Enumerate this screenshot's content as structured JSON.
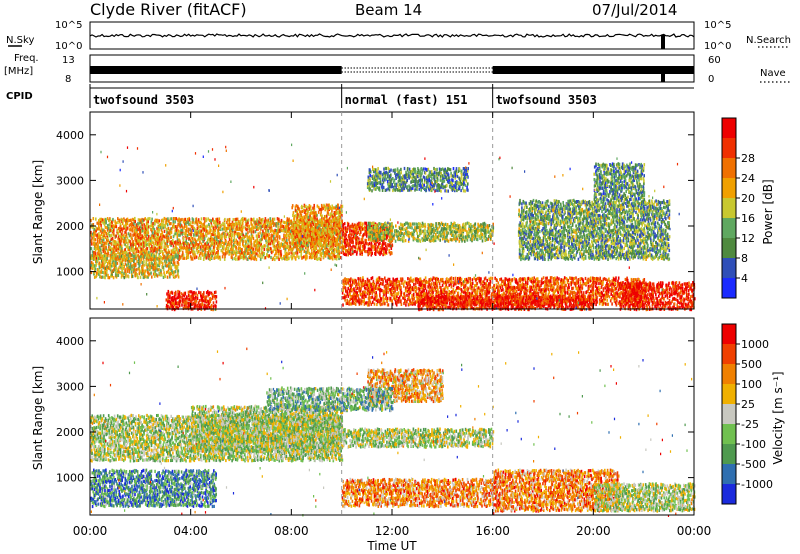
{
  "header": {
    "station": "Clyde River (fitACF)",
    "beam": "Beam 14",
    "date": "07/Jul/2014"
  },
  "aux_panels": {
    "nsky_label": "N.Sky",
    "nsky_ticks": [
      "10^5",
      "10^0"
    ],
    "nsearch_label": "N.Search",
    "nsearch_ticks": [
      "10^5",
      "10^0"
    ],
    "freq_label": "Freq.",
    "freq_unit": "[MHz]",
    "freq_ticks": [
      "13",
      "8"
    ],
    "nave_label": "Nave",
    "nave_ticks": [
      "60",
      "0"
    ],
    "cpid_label": "CPID",
    "cpid_segments": [
      {
        "label": "twofsound 3503",
        "start_hour": 0
      },
      {
        "label": "normal (fast) 151",
        "start_hour": 10
      },
      {
        "label": "twofsound 3503",
        "start_hour": 16
      }
    ]
  },
  "chart_data": [
    {
      "type": "heatmap",
      "title": "",
      "xlabel": "Time UT",
      "ylabel": "Slant Range [km]",
      "xlim": [
        0,
        24
      ],
      "ylim": [
        180,
        4500
      ],
      "yticks": [
        1000,
        2000,
        3000,
        4000
      ],
      "colorbar": {
        "label": "Power [dB]",
        "ticks": [
          "4",
          "8",
          "12",
          "16",
          "20",
          "24",
          "28"
        ],
        "colors": [
          "#1b2bff",
          "#2f4fb8",
          "#4f8a3f",
          "#5fa860",
          "#c8c830",
          "#f0a000",
          "#f07000",
          "#f03000",
          "#ee0000"
        ]
      },
      "bands": [
        {
          "t0": 0.0,
          "t1": 10.0,
          "r0": 1300,
          "r1": 2200,
          "level": 0.62
        },
        {
          "t0": 0.0,
          "t1": 3.5,
          "r0": 900,
          "r1": 1400,
          "level": 0.55
        },
        {
          "t0": 3.0,
          "t1": 5.0,
          "r0": 200,
          "r1": 600,
          "level": 0.9
        },
        {
          "t0": 8.0,
          "t1": 10.0,
          "r0": 1600,
          "r1": 2500,
          "level": 0.65
        },
        {
          "t0": 10.0,
          "t1": 12.0,
          "r0": 1400,
          "r1": 2100,
          "level": 0.85
        },
        {
          "t0": 11.0,
          "t1": 16.0,
          "r0": 1700,
          "r1": 2100,
          "level": 0.45
        },
        {
          "t0": 10.0,
          "t1": 22.0,
          "r0": 300,
          "r1": 900,
          "level": 0.8
        },
        {
          "t0": 13.0,
          "t1": 20.0,
          "r0": 200,
          "r1": 500,
          "level": 0.9
        },
        {
          "t0": 21.0,
          "t1": 24.0,
          "r0": 200,
          "r1": 800,
          "level": 0.92
        },
        {
          "t0": 17.0,
          "t1": 23.0,
          "r0": 1300,
          "r1": 2600,
          "level": 0.35
        },
        {
          "t0": 11.0,
          "t1": 15.0,
          "r0": 2800,
          "r1": 3300,
          "level": 0.3
        },
        {
          "t0": 20.0,
          "t1": 22.0,
          "r0": 2600,
          "r1": 3400,
          "level": 0.3
        }
      ]
    },
    {
      "type": "heatmap",
      "title": "",
      "xlabel": "Time UT",
      "ylabel": "Slant Range [km]",
      "xlim": [
        0,
        24
      ],
      "ylim": [
        180,
        4500
      ],
      "yticks": [
        1000,
        2000,
        3000,
        4000
      ],
      "xticks": [
        "00:00",
        "04:00",
        "08:00",
        "12:00",
        "16:00",
        "20:00",
        "00:00"
      ],
      "colorbar": {
        "label": "Velocity [m s⁻¹]",
        "ticks": [
          "1000",
          "500",
          "100",
          "25",
          "-25",
          "-100",
          "-500",
          "-1000"
        ],
        "colors": [
          "#1b2bdd",
          "#2f6fb0",
          "#4f9a4f",
          "#70c050",
          "#c8c8c0",
          "#f0b000",
          "#f08000",
          "#f04000",
          "#ee0000"
        ]
      },
      "bands": [
        {
          "t0": 0.0,
          "t1": 10.0,
          "r0": 1400,
          "r1": 2400,
          "level": 0.45
        },
        {
          "t0": 0.0,
          "t1": 5.0,
          "r0": 400,
          "r1": 1200,
          "level": 0.25
        },
        {
          "t0": 4.0,
          "t1": 10.0,
          "r0": 1600,
          "r1": 2600,
          "level": 0.45
        },
        {
          "t0": 10.0,
          "t1": 16.0,
          "r0": 1700,
          "r1": 2100,
          "level": 0.45
        },
        {
          "t0": 10.0,
          "t1": 16.0,
          "r0": 400,
          "r1": 1000,
          "level": 0.7
        },
        {
          "t0": 16.0,
          "t1": 21.0,
          "r0": 300,
          "r1": 1200,
          "level": 0.72
        },
        {
          "t0": 20.0,
          "t1": 24.0,
          "r0": 300,
          "r1": 900,
          "level": 0.45
        },
        {
          "t0": 11.0,
          "t1": 14.0,
          "r0": 2700,
          "r1": 3400,
          "level": 0.65
        },
        {
          "t0": 7.0,
          "t1": 12.0,
          "r0": 2500,
          "r1": 3000,
          "level": 0.35
        }
      ]
    }
  ]
}
